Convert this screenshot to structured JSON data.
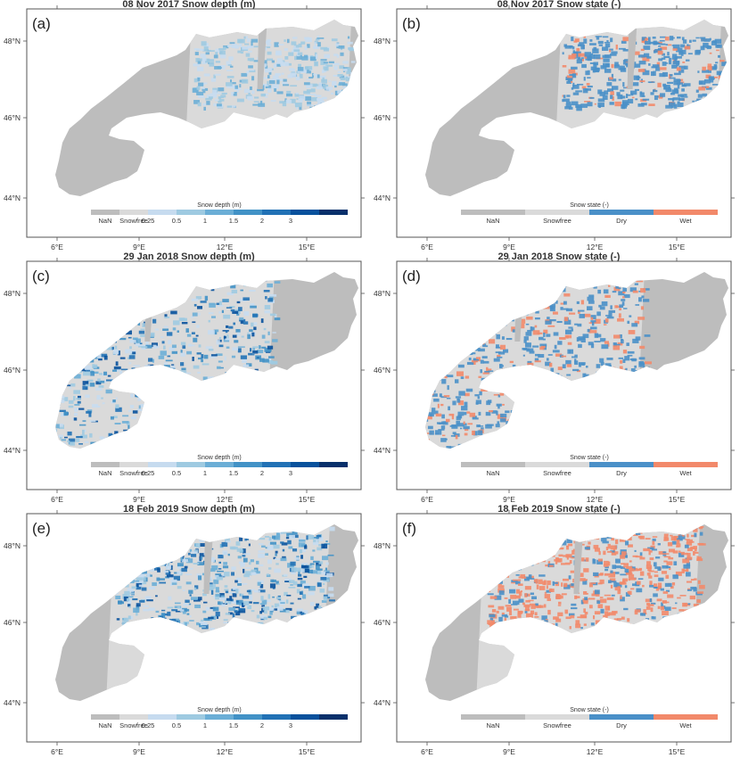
{
  "colors": {
    "nan": "#bdbdbd",
    "snowfree": "#dadada",
    "depth_scale": [
      "#c6dbef",
      "#9ecae1",
      "#6baed6",
      "#4292c6",
      "#2171b5",
      "#08519c",
      "#08306b"
    ],
    "dry": "#4a90c8",
    "wet": "#f2896a",
    "frame": "#555555"
  },
  "axes": {
    "lat_labels": [
      "48°N",
      "46°N",
      "44°N"
    ],
    "lon_labels": [
      "6°E",
      "9°E",
      "12°E",
      "15°E"
    ]
  },
  "legends": {
    "depth": {
      "title": "Snow depth (m)",
      "labels": [
        "NaN",
        "Snowfree",
        "0.25",
        "0.5",
        "1",
        "1.5",
        "2",
        "3"
      ]
    },
    "state": {
      "title": "Snow state (-)",
      "labels": [
        "NaN",
        "Snowfree",
        "Dry",
        "Wet"
      ]
    }
  },
  "panels": [
    {
      "letter": "(a)",
      "title": "08 Nov 2017 Snow depth (m)",
      "kind": "depth",
      "coverage": "low",
      "x0": 0.45,
      "x1": 0.97
    },
    {
      "letter": "(b)",
      "title": "08 Nov 2017 Snow state (-)",
      "kind": "state",
      "coverage": "low",
      "x0": 0.45,
      "x1": 0.97,
      "wet_share": 0.2
    },
    {
      "letter": "(c)",
      "title": "29 Jan 2018 Snow depth (m)",
      "kind": "depth",
      "coverage": "high",
      "x0": 0.0,
      "x1": 0.72
    },
    {
      "letter": "(d)",
      "title": "29 Jan 2018 Snow state (-)",
      "kind": "state",
      "coverage": "high",
      "x0": 0.0,
      "x1": 0.72,
      "wet_share": 0.3
    },
    {
      "letter": "(e)",
      "title": "18 Feb 2019 Snow depth (m)",
      "kind": "depth",
      "coverage": "mid",
      "x0": 0.2,
      "x1": 0.9
    },
    {
      "letter": "(f)",
      "title": "18 Feb 2019 Snow state (-)",
      "kind": "state",
      "coverage": "mid",
      "x0": 0.2,
      "x1": 0.9,
      "wet_share": 0.72
    }
  ]
}
